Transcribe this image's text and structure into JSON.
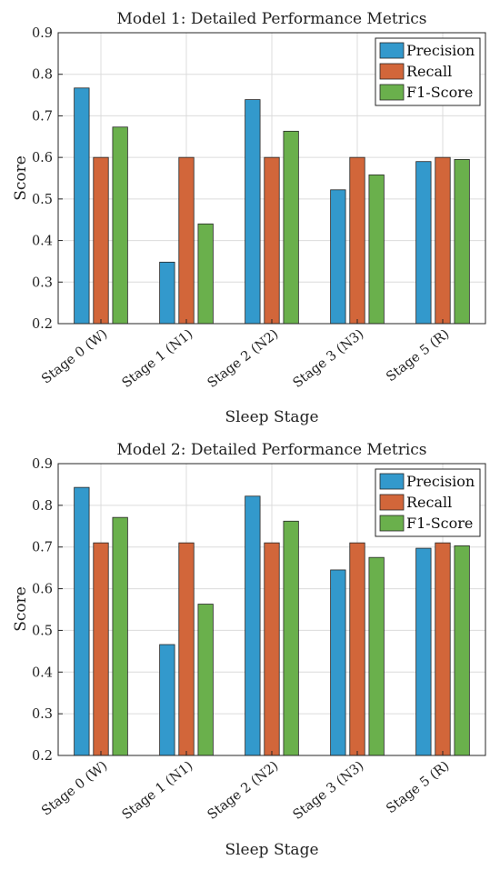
{
  "chart_data": [
    {
      "type": "bar",
      "title": "Model 1: Detailed Performance Metrics",
      "xlabel": "Sleep Stage",
      "ylabel": "Score",
      "ylim": [
        0.2,
        0.9
      ],
      "yticks": [
        0.2,
        0.3,
        0.4,
        0.5,
        0.6,
        0.7,
        0.8,
        0.9
      ],
      "grid": true,
      "legend_position": "top-right",
      "categories": [
        "Stage 0 (W)",
        "Stage 1 (N1)",
        "Stage 2 (N2)",
        "Stage 3 (N3)",
        "Stage 5 (R)"
      ],
      "series": [
        {
          "name": "Precision",
          "color": "#3399cc",
          "values": [
            0.767,
            0.348,
            0.739,
            0.522,
            0.59
          ]
        },
        {
          "name": "Recall",
          "color": "#d2663a",
          "values": [
            0.6,
            0.6,
            0.6,
            0.6,
            0.6
          ]
        },
        {
          "name": "F1-Score",
          "color": "#6ab04c",
          "values": [
            0.673,
            0.44,
            0.663,
            0.558,
            0.595
          ]
        }
      ]
    },
    {
      "type": "bar",
      "title": "Model 2: Detailed Performance Metrics",
      "xlabel": "Sleep Stage",
      "ylabel": "Score",
      "ylim": [
        0.2,
        0.9
      ],
      "yticks": [
        0.2,
        0.3,
        0.4,
        0.5,
        0.6,
        0.7,
        0.8,
        0.9
      ],
      "grid": true,
      "legend_position": "top-right",
      "categories": [
        "Stage 0 (W)",
        "Stage 1 (N1)",
        "Stage 2 (N2)",
        "Stage 3 (N3)",
        "Stage 5 (R)"
      ],
      "series": [
        {
          "name": "Precision",
          "color": "#3399cc",
          "values": [
            0.843,
            0.466,
            0.822,
            0.645,
            0.697
          ]
        },
        {
          "name": "Recall",
          "color": "#d2663a",
          "values": [
            0.71,
            0.71,
            0.71,
            0.71,
            0.71
          ]
        },
        {
          "name": "F1-Score",
          "color": "#6ab04c",
          "values": [
            0.771,
            0.563,
            0.762,
            0.675,
            0.703
          ]
        }
      ]
    }
  ]
}
